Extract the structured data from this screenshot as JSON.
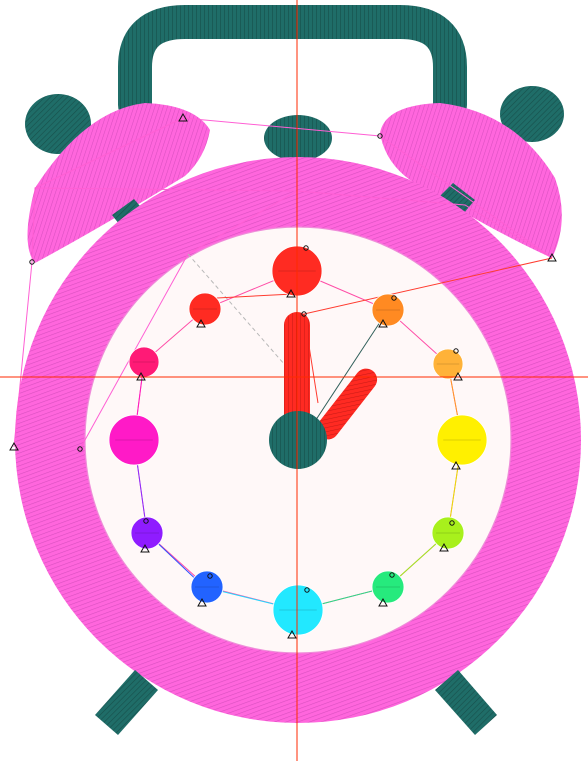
{
  "canvas": {
    "background": "#ffffff"
  },
  "colors": {
    "clock_ring": "#ff66dd",
    "clock_ring_stitch": "#d94fc0",
    "clock_face": "#fff8f8",
    "bell": "#ff66dd",
    "bell_stitch": "#d94fc0",
    "dark_teal": "#1f6d68",
    "dark_teal_stitch": "#174f4b",
    "guide_line": "#ff2a00",
    "hand": "#ff2a22",
    "travel_line_pink": "#ff5fd4",
    "travel_line_red": "#ff3b2f",
    "travel_line_gray": "#b8b8b8",
    "marker_stroke": "#111111"
  },
  "ui": {
    "guides_visible": true,
    "travel_paths_visible": true,
    "node_markers_visible": true
  },
  "design": {
    "icons": [
      "handle-icon",
      "bell-icon",
      "clock-face-icon",
      "hour-marker-icon",
      "clock-hand-icon",
      "foot-icon"
    ],
    "hour_marker_colors": [
      "#ff2b22",
      "#ff8a22",
      "#ffb238",
      "#fff000",
      "#a8f01c",
      "#26ea7d",
      "#22e8ff",
      "#2263ff",
      "#8f1cff",
      "#ff1ac7",
      "#ff1a76",
      "#ff2b22"
    ]
  }
}
